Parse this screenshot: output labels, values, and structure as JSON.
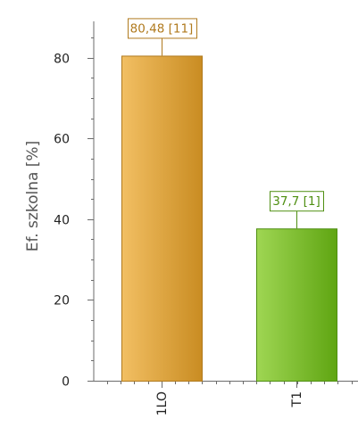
{
  "chart_data": {
    "type": "bar",
    "categories": [
      "1LO",
      "T1"
    ],
    "values": [
      80.48,
      37.7
    ],
    "data_labels": [
      "80,48 [11]",
      "37,7 [1]"
    ],
    "colors": [
      {
        "light": "#f2bf63",
        "dark": "#c98c22",
        "border": "#b07a1e"
      },
      {
        "light": "#9fd653",
        "dark": "#5fa512",
        "border": "#4f8f12"
      }
    ],
    "ylabel": "Ef. szkolna [%]",
    "xlabel": "",
    "ylim": [
      0,
      89
    ],
    "yticks": [
      0,
      20,
      40,
      60,
      80
    ],
    "ytick_labels": [
      "0",
      "20",
      "40",
      "60",
      "80"
    ],
    "minor_tick_step": 5,
    "grid": false
  }
}
